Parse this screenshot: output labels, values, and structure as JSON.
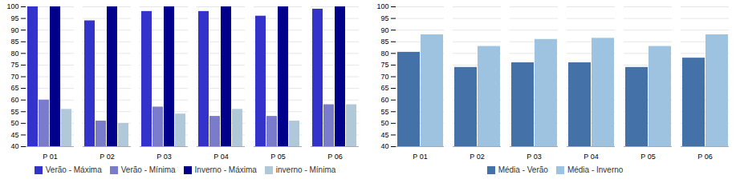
{
  "chart_data": [
    {
      "type": "bar",
      "categories": [
        "P 01",
        "P 02",
        "P 03",
        "P 04",
        "P 05",
        "P 06"
      ],
      "series": [
        {
          "name": "Verão - Máxima",
          "color": "#3333CC",
          "values": [
            100,
            94,
            98,
            98,
            96,
            99
          ]
        },
        {
          "name": "Verão - Mínima",
          "color": "#7B7BCC",
          "values": [
            60,
            51,
            57,
            53,
            53,
            58
          ]
        },
        {
          "name": "Inverno - Máxima",
          "color": "#00008B",
          "values": [
            100,
            100,
            100,
            100,
            100,
            100
          ]
        },
        {
          "name": "inverno - Mínima",
          "color": "#B0C8D8",
          "values": [
            56,
            50,
            54,
            56,
            51,
            58
          ]
        }
      ],
      "ylim": [
        40,
        100
      ],
      "yticks": [
        40,
        45,
        50,
        55,
        60,
        65,
        70,
        75,
        80,
        85,
        90,
        95,
        100
      ],
      "grid": true,
      "legend": "bottom"
    },
    {
      "type": "bar",
      "categories": [
        "P 01",
        "P 02",
        "P 03",
        "P 04",
        "P 05",
        "P 06"
      ],
      "series": [
        {
          "name": "Média - Verão",
          "color": "#4472A8",
          "values": [
            80.5,
            74,
            76,
            76,
            74,
            78
          ]
        },
        {
          "name": "Média - Inverno",
          "color": "#9DC3E0",
          "values": [
            88,
            83,
            86,
            86.5,
            83,
            88
          ]
        }
      ],
      "ylim": [
        40,
        100
      ],
      "yticks": [
        40,
        45,
        50,
        55,
        60,
        65,
        70,
        75,
        80,
        85,
        90,
        95,
        100
      ],
      "grid": true,
      "legend": "bottom"
    }
  ]
}
